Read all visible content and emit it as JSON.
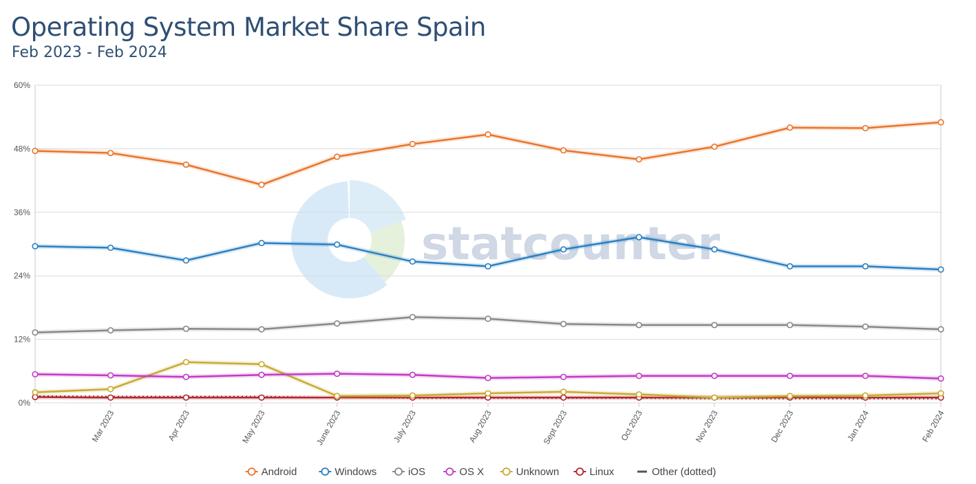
{
  "chart_data": {
    "type": "line",
    "title": "Operating System Market Share Spain",
    "subtitle": "Feb 2023 - Feb 2024",
    "watermark": "statcounter",
    "x": [
      "Feb 2023",
      "Mar 2023",
      "Apr 2023",
      "May 2023",
      "June 2023",
      "July 2023",
      "Aug 2023",
      "Sept 2023",
      "Oct 2023",
      "Nov 2023",
      "Dec 2023",
      "Jan 2024",
      "Feb 2024"
    ],
    "x_tick_labels": [
      "Mar 2023",
      "Apr 2023",
      "May 2023",
      "June 2023",
      "July 2023",
      "Aug 2023",
      "Sept 2023",
      "Oct 2023",
      "Nov 2023",
      "Dec 2023",
      "Jan 2024",
      "Feb 2024"
    ],
    "ylim": [
      0,
      60
    ],
    "y_ticks": [
      "0%",
      "12%",
      "24%",
      "36%",
      "48%",
      "60%"
    ],
    "y_tick_values": [
      0,
      12,
      24,
      36,
      48,
      60
    ],
    "grid": true,
    "legend_position": "bottom",
    "series": [
      {
        "name": "Android",
        "color": "#e8742a",
        "values": [
          47.6,
          47.2,
          45.0,
          41.2,
          46.5,
          48.9,
          50.7,
          47.7,
          46.0,
          48.4,
          52.0,
          51.9,
          53.0
        ]
      },
      {
        "name": "Windows",
        "color": "#2a7fc1",
        "values": [
          29.6,
          29.3,
          26.9,
          30.2,
          29.9,
          26.7,
          25.8,
          29.0,
          31.3,
          29.0,
          25.8,
          25.8,
          25.2
        ]
      },
      {
        "name": "iOS",
        "color": "#888888",
        "values": [
          13.3,
          13.7,
          14.0,
          13.9,
          15.0,
          16.2,
          15.9,
          14.9,
          14.7,
          14.7,
          14.7,
          14.4,
          13.9
        ]
      },
      {
        "name": "OS X",
        "color": "#c23ac4",
        "values": [
          5.4,
          5.2,
          4.9,
          5.3,
          5.5,
          5.3,
          4.7,
          4.9,
          5.1,
          5.1,
          5.1,
          5.1,
          4.6
        ]
      },
      {
        "name": "Unknown",
        "color": "#c8aa33",
        "values": [
          2.0,
          2.6,
          7.7,
          7.3,
          1.3,
          1.4,
          1.8,
          2.1,
          1.6,
          1.0,
          1.3,
          1.4,
          1.8
        ]
      },
      {
        "name": "Linux",
        "color": "#b3262b",
        "values": [
          1.1,
          1.0,
          1.0,
          1.0,
          1.0,
          1.0,
          1.0,
          1.0,
          1.0,
          1.0,
          1.0,
          1.0,
          1.0
        ]
      },
      {
        "name": "Other (dotted)",
        "color": "#555555",
        "dotted": true,
        "values": [
          1.3,
          1.2,
          1.2,
          1.2,
          1.0,
          0.9,
          0.9,
          0.9,
          0.9,
          0.8,
          0.8,
          0.8,
          0.8
        ]
      }
    ]
  }
}
